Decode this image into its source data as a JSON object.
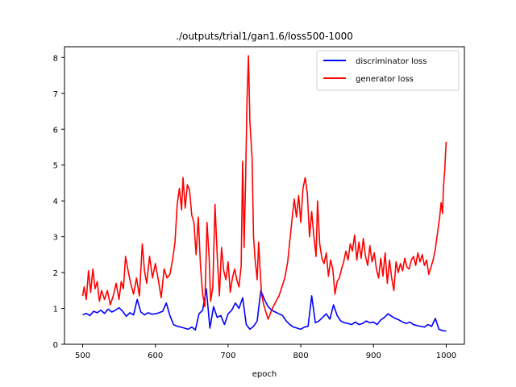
{
  "chart_data": {
    "type": "line",
    "title": "./outputs/trial1/gan1.6/loss500-1000",
    "xlabel": "epoch",
    "ylabel": "",
    "xlim": [
      475,
      1025
    ],
    "ylim": [
      0,
      8.3
    ],
    "xticks": [
      500,
      600,
      700,
      800,
      900,
      1000
    ],
    "yticks": [
      0,
      1,
      2,
      3,
      4,
      5,
      6,
      7,
      8
    ],
    "legend_position": "upper-right",
    "grid": false,
    "series": [
      {
        "name": "discriminator loss",
        "color": "#0000ff",
        "points": [
          [
            500,
            0.82
          ],
          [
            505,
            0.86
          ],
          [
            510,
            0.8
          ],
          [
            515,
            0.92
          ],
          [
            520,
            0.88
          ],
          [
            525,
            0.95
          ],
          [
            530,
            0.86
          ],
          [
            535,
            0.98
          ],
          [
            540,
            0.9
          ],
          [
            545,
            0.95
          ],
          [
            550,
            1.02
          ],
          [
            555,
            0.92
          ],
          [
            560,
            0.78
          ],
          [
            565,
            0.88
          ],
          [
            570,
            0.82
          ],
          [
            575,
            1.25
          ],
          [
            580,
            0.9
          ],
          [
            585,
            0.82
          ],
          [
            590,
            0.88
          ],
          [
            595,
            0.84
          ],
          [
            600,
            0.85
          ],
          [
            605,
            0.88
          ],
          [
            610,
            0.92
          ],
          [
            615,
            1.15
          ],
          [
            620,
            0.8
          ],
          [
            625,
            0.55
          ],
          [
            630,
            0.5
          ],
          [
            635,
            0.48
          ],
          [
            640,
            0.45
          ],
          [
            645,
            0.42
          ],
          [
            650,
            0.48
          ],
          [
            655,
            0.4
          ],
          [
            660,
            0.85
          ],
          [
            665,
            0.95
          ],
          [
            670,
            1.55
          ],
          [
            675,
            0.45
          ],
          [
            680,
            1.05
          ],
          [
            685,
            0.75
          ],
          [
            690,
            0.8
          ],
          [
            695,
            0.55
          ],
          [
            700,
            0.85
          ],
          [
            705,
            0.95
          ],
          [
            710,
            1.15
          ],
          [
            715,
            1.0
          ],
          [
            720,
            1.3
          ],
          [
            725,
            0.55
          ],
          [
            730,
            0.42
          ],
          [
            735,
            0.5
          ],
          [
            740,
            0.65
          ],
          [
            745,
            1.5
          ],
          [
            750,
            1.25
          ],
          [
            755,
            1.05
          ],
          [
            760,
            0.95
          ],
          [
            765,
            0.9
          ],
          [
            770,
            0.85
          ],
          [
            775,
            0.8
          ],
          [
            780,
            0.65
          ],
          [
            785,
            0.55
          ],
          [
            790,
            0.48
          ],
          [
            795,
            0.45
          ],
          [
            800,
            0.42
          ],
          [
            805,
            0.48
          ],
          [
            810,
            0.5
          ],
          [
            815,
            1.35
          ],
          [
            820,
            0.6
          ],
          [
            825,
            0.65
          ],
          [
            830,
            0.75
          ],
          [
            835,
            0.85
          ],
          [
            840,
            0.7
          ],
          [
            845,
            1.1
          ],
          [
            850,
            0.8
          ],
          [
            855,
            0.65
          ],
          [
            860,
            0.6
          ],
          [
            865,
            0.58
          ],
          [
            870,
            0.55
          ],
          [
            875,
            0.62
          ],
          [
            880,
            0.55
          ],
          [
            885,
            0.58
          ],
          [
            890,
            0.65
          ],
          [
            895,
            0.6
          ],
          [
            900,
            0.62
          ],
          [
            905,
            0.55
          ],
          [
            910,
            0.68
          ],
          [
            915,
            0.75
          ],
          [
            920,
            0.85
          ],
          [
            925,
            0.78
          ],
          [
            930,
            0.72
          ],
          [
            935,
            0.68
          ],
          [
            940,
            0.62
          ],
          [
            945,
            0.58
          ],
          [
            950,
            0.62
          ],
          [
            955,
            0.55
          ],
          [
            960,
            0.52
          ],
          [
            965,
            0.5
          ],
          [
            970,
            0.48
          ],
          [
            975,
            0.55
          ],
          [
            980,
            0.5
          ],
          [
            985,
            0.72
          ],
          [
            990,
            0.42
          ],
          [
            995,
            0.38
          ],
          [
            1000,
            0.37
          ]
        ]
      },
      {
        "name": "generator loss",
        "color": "#ff0000",
        "points": [
          [
            500,
            1.35
          ],
          [
            502,
            1.6
          ],
          [
            505,
            1.25
          ],
          [
            508,
            2.05
          ],
          [
            511,
            1.45
          ],
          [
            514,
            2.1
          ],
          [
            517,
            1.55
          ],
          [
            520,
            1.75
          ],
          [
            523,
            1.2
          ],
          [
            526,
            1.5
          ],
          [
            530,
            1.25
          ],
          [
            534,
            1.5
          ],
          [
            538,
            1.1
          ],
          [
            542,
            1.35
          ],
          [
            546,
            1.7
          ],
          [
            550,
            1.25
          ],
          [
            553,
            1.75
          ],
          [
            556,
            1.55
          ],
          [
            559,
            2.45
          ],
          [
            562,
            2.1
          ],
          [
            566,
            1.7
          ],
          [
            570,
            1.4
          ],
          [
            574,
            1.85
          ],
          [
            578,
            1.35
          ],
          [
            582,
            2.8
          ],
          [
            585,
            2.05
          ],
          [
            588,
            1.7
          ],
          [
            592,
            2.45
          ],
          [
            596,
            1.85
          ],
          [
            600,
            2.25
          ],
          [
            604,
            1.8
          ],
          [
            608,
            1.3
          ],
          [
            612,
            2.1
          ],
          [
            616,
            1.85
          ],
          [
            620,
            1.95
          ],
          [
            624,
            2.4
          ],
          [
            627,
            2.85
          ],
          [
            630,
            3.9
          ],
          [
            633,
            4.35
          ],
          [
            636,
            3.75
          ],
          [
            638,
            4.65
          ],
          [
            641,
            3.8
          ],
          [
            644,
            4.45
          ],
          [
            647,
            4.3
          ],
          [
            650,
            3.6
          ],
          [
            653,
            3.4
          ],
          [
            656,
            2.5
          ],
          [
            659,
            3.55
          ],
          [
            662,
            2.2
          ],
          [
            665,
            1.4
          ],
          [
            668,
            1.05
          ],
          [
            671,
            3.4
          ],
          [
            674,
            2.4
          ],
          [
            676,
            1.2
          ],
          [
            679,
            1.6
          ],
          [
            682,
            3.9
          ],
          [
            685,
            2.5
          ],
          [
            688,
            1.35
          ],
          [
            691,
            2.7
          ],
          [
            694,
            2.05
          ],
          [
            697,
            1.8
          ],
          [
            700,
            2.3
          ],
          [
            703,
            1.45
          ],
          [
            706,
            1.85
          ],
          [
            709,
            2.1
          ],
          [
            712,
            1.8
          ],
          [
            715,
            1.6
          ],
          [
            718,
            2.2
          ],
          [
            720,
            5.1
          ],
          [
            722,
            2.7
          ],
          [
            724,
            4.5
          ],
          [
            726,
            6.8
          ],
          [
            728,
            8.05
          ],
          [
            730,
            6.2
          ],
          [
            733,
            5.2
          ],
          [
            735,
            3.0
          ],
          [
            737,
            2.4
          ],
          [
            740,
            1.8
          ],
          [
            742,
            2.85
          ],
          [
            744,
            2.1
          ],
          [
            746,
            1.4
          ],
          [
            749,
            1.1
          ],
          [
            752,
            0.9
          ],
          [
            755,
            0.7
          ],
          [
            758,
            0.85
          ],
          [
            762,
            1.05
          ],
          [
            766,
            1.2
          ],
          [
            770,
            1.35
          ],
          [
            774,
            1.6
          ],
          [
            778,
            1.85
          ],
          [
            782,
            2.3
          ],
          [
            785,
            2.9
          ],
          [
            788,
            3.5
          ],
          [
            791,
            4.05
          ],
          [
            794,
            3.55
          ],
          [
            797,
            4.15
          ],
          [
            800,
            3.4
          ],
          [
            803,
            4.35
          ],
          [
            806,
            4.65
          ],
          [
            809,
            4.2
          ],
          [
            812,
            3.0
          ],
          [
            815,
            3.7
          ],
          [
            818,
            3.0
          ],
          [
            821,
            2.45
          ],
          [
            823,
            4.0
          ],
          [
            826,
            2.8
          ],
          [
            829,
            2.4
          ],
          [
            832,
            2.25
          ],
          [
            835,
            2.55
          ],
          [
            838,
            1.9
          ],
          [
            841,
            2.35
          ],
          [
            844,
            2.1
          ],
          [
            847,
            1.4
          ],
          [
            850,
            1.75
          ],
          [
            853,
            1.85
          ],
          [
            856,
            2.1
          ],
          [
            859,
            2.3
          ],
          [
            862,
            2.6
          ],
          [
            865,
            2.35
          ],
          [
            868,
            2.8
          ],
          [
            871,
            2.6
          ],
          [
            874,
            3.05
          ],
          [
            877,
            2.35
          ],
          [
            880,
            2.85
          ],
          [
            883,
            2.4
          ],
          [
            886,
            2.95
          ],
          [
            889,
            2.45
          ],
          [
            892,
            2.2
          ],
          [
            895,
            2.75
          ],
          [
            898,
            2.3
          ],
          [
            901,
            2.55
          ],
          [
            904,
            2.1
          ],
          [
            907,
            1.85
          ],
          [
            910,
            2.4
          ],
          [
            913,
            1.9
          ],
          [
            916,
            2.55
          ],
          [
            919,
            1.7
          ],
          [
            922,
            2.35
          ],
          [
            925,
            1.85
          ],
          [
            928,
            1.5
          ],
          [
            931,
            2.3
          ],
          [
            934,
            2.0
          ],
          [
            937,
            2.25
          ],
          [
            940,
            2.05
          ],
          [
            943,
            2.4
          ],
          [
            946,
            2.15
          ],
          [
            949,
            2.1
          ],
          [
            952,
            2.35
          ],
          [
            955,
            2.45
          ],
          [
            958,
            2.2
          ],
          [
            961,
            2.55
          ],
          [
            964,
            2.3
          ],
          [
            967,
            2.5
          ],
          [
            970,
            2.2
          ],
          [
            973,
            2.35
          ],
          [
            976,
            1.95
          ],
          [
            979,
            2.15
          ],
          [
            982,
            2.35
          ],
          [
            985,
            2.65
          ],
          [
            988,
            3.1
          ],
          [
            991,
            3.55
          ],
          [
            993,
            3.95
          ],
          [
            995,
            3.65
          ],
          [
            996,
            4.3
          ],
          [
            997,
            4.6
          ],
          [
            998,
            4.85
          ],
          [
            999,
            5.3
          ],
          [
            1000,
            5.65
          ]
        ]
      }
    ]
  }
}
